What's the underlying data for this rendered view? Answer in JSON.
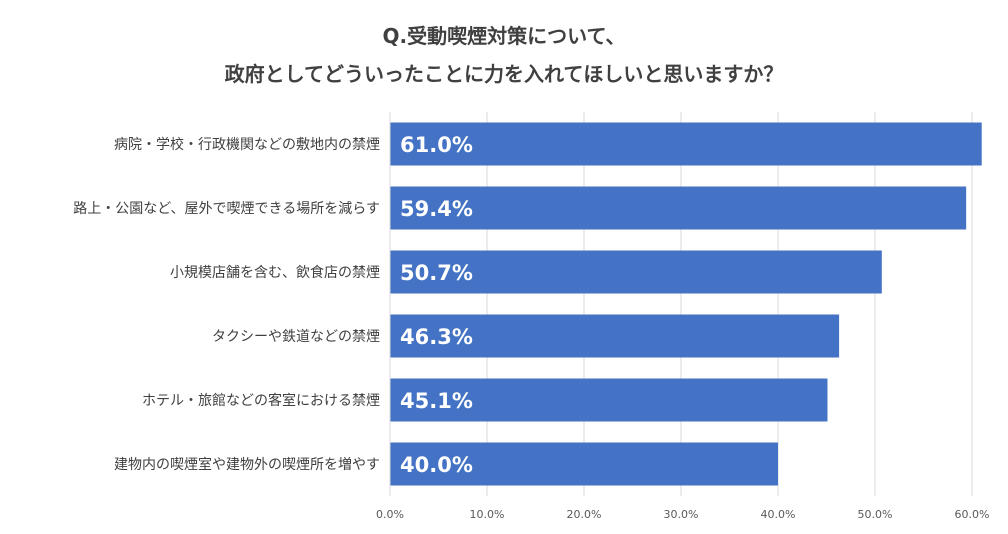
{
  "chart_data": {
    "type": "bar",
    "orientation": "horizontal",
    "title": [
      "Q.受動喫煙対策について、",
      "政府としてどういったことに力を入れてほしいと思いますか？"
    ],
    "categories": [
      "病院・学校・行政機関などの敷地内の禁煙",
      "路上・公園など、屋外で喫煙できる場所を減らす",
      "小規模店舗を含む、飲食店の禁煙",
      "タクシーや鉄道などの禁煙",
      "ホテル・旅館などの客室における禁煙",
      "建物内の喫煙室や建物外の喫煙所を増やす"
    ],
    "values": [
      61.0,
      59.4,
      50.7,
      46.3,
      45.1,
      40.0
    ],
    "data_labels": [
      "61.0%",
      "59.4%",
      "50.7%",
      "46.3%",
      "45.1%",
      "40.0%"
    ],
    "xlim": [
      0,
      60
    ],
    "ticks": [
      0,
      10,
      20,
      30,
      40,
      50,
      60
    ],
    "tick_labels": [
      "0.0%",
      "10.0%",
      "20.0%",
      "30.0%",
      "40.0%",
      "50.0%",
      "60.0%"
    ],
    "grid": true,
    "bar_color": "#4472C4",
    "grid_color": "#D9D9D9"
  }
}
